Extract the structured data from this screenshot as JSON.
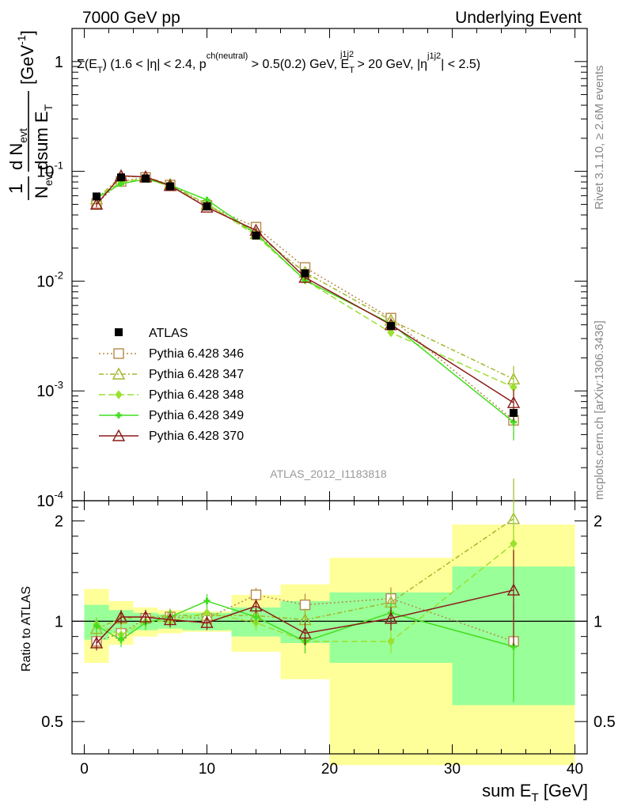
{
  "header": {
    "left": "7000 GeV pp",
    "right": "Underlying Event"
  },
  "side_labels": {
    "rivet": "Rivet 3.1.10, ≥ 2.6M events",
    "mcplots": "mcplots.cern.ch [arXiv:1306.3436]"
  },
  "chart_data": [
    {
      "type": "scatter",
      "title": "Σ(E_T) (1.6 < |η| < 2.4, p^ch(neutral) > 0.5(0.2) GeV, E_T^j1j2 > 20 GeV, |η^j1j2| < 2.5)",
      "title_parts": {
        "a": "Σ(E",
        "a_sub": "T",
        "b": ") (1.6 < |η| < 2.4, p",
        "b_sup": "ch(neutral)",
        "c": " > 0.5(0.2) GeV, E",
        "c_sub": "T",
        "c_sup": "j1j2",
        "d": " > 20 GeV, |η",
        "d_sup": "j1j2",
        "e": "| < 2.5)"
      },
      "ylabel": "1/N_evt dN_evt/dsum E_T [GeV^-1]",
      "ylabel_parts": {
        "one": "1",
        "n": "N",
        "n_sub": "evt",
        "d": "d N",
        "d_sub": "evt",
        "dsum": "dsum E",
        "dsum_sub": "T",
        "unit": "[GeV",
        "unit_sup": "-1",
        "unit_end": "]"
      },
      "analysis_label": "ATLAS_2012_I1183818",
      "yscale": "log",
      "ylim": [
        0.0001,
        2
      ],
      "y_ticks": [
        {
          "v": 0.0001,
          "base": "10",
          "exp": "-4"
        },
        {
          "v": 0.001,
          "base": "10",
          "exp": "-3"
        },
        {
          "v": 0.01,
          "base": "10",
          "exp": "-2"
        },
        {
          "v": 0.1,
          "base": "10",
          "exp": "-1"
        },
        {
          "v": 1,
          "base": "1",
          "exp": ""
        }
      ],
      "legend_position": "lower-left",
      "data_series": {
        "name": "ATLAS",
        "x": [
          1,
          3,
          5,
          7,
          10,
          14,
          18,
          25,
          35
        ],
        "y": [
          0.059,
          0.088,
          0.086,
          0.073,
          0.048,
          0.026,
          0.0118,
          0.0039,
          0.00063
        ],
        "color": "#000000"
      },
      "series": [
        {
          "name": "Pythia 6.428 346",
          "color": "#b5894a",
          "dash": "2,3",
          "marker": "square",
          "y": [
            0.051,
            0.081,
            0.088,
            0.075,
            0.049,
            0.031,
            0.0133,
            0.0046,
            0.00054
          ]
        },
        {
          "name": "Pythia 6.428 347",
          "color": "#a4b52a",
          "dash": "6,3,2,3",
          "marker": "triangle",
          "y": [
            0.056,
            0.09,
            0.089,
            0.076,
            0.05,
            0.027,
            0.012,
            0.0044,
            0.00128
          ]
        },
        {
          "name": "Pythia 6.428 348",
          "color": "#9ce030",
          "dash": "8,4",
          "marker": "diamond",
          "y": [
            0.058,
            0.08,
            0.086,
            0.073,
            0.051,
            0.026,
            0.0102,
            0.0034,
            0.00108
          ]
        },
        {
          "name": "Pythia 6.428 349",
          "color": "#44dd20",
          "dash": "",
          "marker": "cross",
          "y": [
            0.057,
            0.077,
            0.085,
            0.075,
            0.055,
            0.027,
            0.0102,
            0.0041,
            0.00052
          ]
        },
        {
          "name": "Pythia 6.428 370",
          "color": "#8b1a1a",
          "dash": "",
          "marker": "triangle",
          "y": [
            0.05,
            0.091,
            0.089,
            0.074,
            0.047,
            0.029,
            0.0108,
            0.004,
            0.00078
          ]
        }
      ]
    },
    {
      "type": "scatter",
      "ylabel": "Ratio to ATLAS",
      "xlabel": "sum E_T [GeV]",
      "xlabel_parts": {
        "a": "sum E",
        "sub": "T",
        "b": " [GeV]"
      },
      "xlim": [
        -1,
        41
      ],
      "ylim": [
        0.4,
        2.3
      ],
      "yscale": "log",
      "x_ticks": [
        0,
        10,
        20,
        30,
        40
      ],
      "y_ticks": [
        {
          "v": 0.5,
          "label": "0.5"
        },
        {
          "v": 1,
          "label": "1"
        },
        {
          "v": 2,
          "label": "2"
        }
      ],
      "bins": [
        [
          0,
          2
        ],
        [
          2,
          4
        ],
        [
          4,
          6
        ],
        [
          6,
          8
        ],
        [
          8,
          12
        ],
        [
          12,
          16
        ],
        [
          16,
          20
        ],
        [
          20,
          30
        ],
        [
          30,
          40
        ]
      ],
      "band_inner": [
        [
          0.88,
          1.12
        ],
        [
          0.92,
          1.08
        ],
        [
          0.94,
          1.06
        ],
        [
          0.95,
          1.05
        ],
        [
          0.94,
          1.06
        ],
        [
          0.9,
          1.1
        ],
        [
          0.86,
          1.15
        ],
        [
          0.75,
          1.22
        ],
        [
          0.56,
          1.46
        ]
      ],
      "band_outer": [
        [
          0.75,
          1.25
        ],
        [
          0.85,
          1.15
        ],
        [
          0.9,
          1.1
        ],
        [
          0.92,
          1.08
        ],
        [
          0.93,
          1.07
        ],
        [
          0.81,
          1.2
        ],
        [
          0.67,
          1.29
        ],
        [
          0.37,
          1.55
        ],
        [
          0.37,
          1.95
        ]
      ],
      "ratios": [
        {
          "name": "Pythia 6.428 346",
          "y": [
            0.87,
            0.92,
            1.02,
            1.03,
            1.02,
            1.2,
            1.12,
            1.17,
            0.87
          ]
        },
        {
          "name": "Pythia 6.428 347",
          "y": [
            0.95,
            1.02,
            1.03,
            1.04,
            1.04,
            1.04,
            1.01,
            1.14,
            2.03
          ]
        },
        {
          "name": "Pythia 6.428 348",
          "y": [
            0.98,
            0.91,
            1.0,
            1.0,
            1.06,
            0.99,
            0.87,
            0.87,
            1.71
          ]
        },
        {
          "name": "Pythia 6.428 349",
          "y": [
            0.97,
            0.88,
            0.99,
            1.03,
            1.15,
            1.03,
            0.87,
            1.06,
            0.84
          ]
        },
        {
          "name": "Pythia 6.428 370",
          "y": [
            0.86,
            1.03,
            1.03,
            1.01,
            0.99,
            1.11,
            0.92,
            1.02,
            1.24
          ]
        }
      ]
    }
  ]
}
